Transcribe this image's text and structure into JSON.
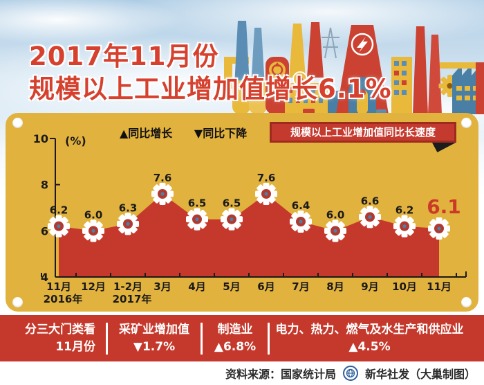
{
  "title": {
    "line1": "2017年11月份",
    "line2": "规模以上工业增加值增长6.1%"
  },
  "chart_data": {
    "type": "area",
    "title": "规模以上工业增加值同比长速度",
    "unit": "(%)",
    "categories": [
      "11月",
      "12月",
      "1-2月",
      "3月",
      "4月",
      "5月",
      "6月",
      "7月",
      "8月",
      "9月",
      "10月",
      "11月"
    ],
    "values": [
      6.2,
      6.0,
      6.3,
      7.6,
      6.5,
      6.5,
      7.6,
      6.4,
      6.0,
      6.6,
      6.2,
      6.1
    ],
    "value_labels": [
      "6.2",
      "6.0",
      "6.3",
      "7.6",
      "6.5",
      "6.5",
      "7.6",
      "6.4",
      "6.0",
      "6.6",
      "6.2",
      "6.1"
    ],
    "year_markers": [
      {
        "category_index": 0,
        "label": "2016年"
      },
      {
        "category_index": 2,
        "label": "2017年"
      }
    ],
    "ylim": [
      4,
      10
    ],
    "yticks": [
      4,
      6,
      8,
      10
    ],
    "legend": [
      "▲同比增长",
      "▼同比下降"
    ],
    "legend_position": "top",
    "grid": false,
    "highlight_last_value": true
  },
  "bottom_band": {
    "intro_line1": "分三大门类看",
    "intro_line2": "11月份",
    "items": [
      {
        "name": "采矿业增加值",
        "value": "▼1.7%"
      },
      {
        "name": "制造业",
        "value": "▲6.8%"
      },
      {
        "name": "电力、热力、燃气及水生产和供应业",
        "value": "▲4.5%"
      }
    ]
  },
  "footer": {
    "source": "资料来源：国家统计局",
    "credit": "新华社发（大巢制图）"
  },
  "colors": {
    "panel_yellow": "#e2b23e",
    "chart_red": "#c5392c",
    "banner_red": "#c43a2e",
    "banner_border": "#9e2a20",
    "title_red": "#d5412e",
    "axis_black": "#1a1a1a",
    "marker_core_red": "#b03a30",
    "marker_dot_blue": "#4e7fa6",
    "highlight_red": "#cb3a28",
    "logo_blue": "#2e5f9e"
  }
}
